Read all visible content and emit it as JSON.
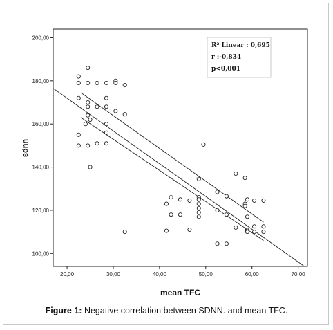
{
  "caption": {
    "label": "Figure 1:",
    "text": "Negative correlation between SDNN. and mean TFC."
  },
  "chart_data": {
    "type": "scatter",
    "xlabel": "mean TFC",
    "ylabel": "sdnn",
    "xlim": [
      17,
      72
    ],
    "ylim": [
      94,
      204
    ],
    "x_ticks": [
      20,
      30,
      40,
      50,
      60,
      70
    ],
    "x_tick_labels": [
      "20,00",
      "30,00",
      "40,00",
      "50,00",
      "60,00",
      "70,00"
    ],
    "y_ticks": [
      100,
      120,
      140,
      160,
      180,
      200
    ],
    "y_tick_labels": [
      "100,00",
      "120,00",
      "140,00",
      "160,00",
      "180,00",
      "200,00"
    ],
    "grid": false,
    "annotations": [
      "R² Linear : 0,695",
      "r :-0,834",
      "p<0,001"
    ],
    "fit_line": [
      [
        17,
        176.5
      ],
      [
        72,
        93
      ]
    ],
    "ci_upper": [
      [
        23,
        174.5
      ],
      [
        62.5,
        114.5
      ]
    ],
    "ci_lower": [
      [
        23,
        163
      ],
      [
        62.5,
        106
      ]
    ],
    "points": [
      [
        22.5,
        182
      ],
      [
        22.5,
        179
      ],
      [
        22.5,
        172
      ],
      [
        22.5,
        155
      ],
      [
        22.5,
        150
      ],
      [
        24,
        160
      ],
      [
        24.5,
        186
      ],
      [
        24.5,
        179
      ],
      [
        24.5,
        170
      ],
      [
        24.5,
        168
      ],
      [
        24.5,
        164
      ],
      [
        24.5,
        150
      ],
      [
        25,
        162
      ],
      [
        25,
        140
      ],
      [
        26.5,
        179
      ],
      [
        26.5,
        168
      ],
      [
        26.5,
        151
      ],
      [
        28.5,
        179
      ],
      [
        28.5,
        172
      ],
      [
        28.5,
        168
      ],
      [
        28.5,
        160
      ],
      [
        28.5,
        156
      ],
      [
        28.5,
        151
      ],
      [
        30.5,
        180
      ],
      [
        30.5,
        179
      ],
      [
        30.5,
        166
      ],
      [
        32.5,
        178
      ],
      [
        32.5,
        164.5
      ],
      [
        32.5,
        110
      ],
      [
        41.5,
        123
      ],
      [
        41.5,
        110.5
      ],
      [
        42.5,
        126
      ],
      [
        42.5,
        118
      ],
      [
        44.5,
        125
      ],
      [
        44.5,
        118
      ],
      [
        46.5,
        124.5
      ],
      [
        46.5,
        111
      ],
      [
        48.5,
        134.5
      ],
      [
        48.5,
        126
      ],
      [
        48.5,
        125
      ],
      [
        48.5,
        123
      ],
      [
        48.5,
        121
      ],
      [
        48.5,
        119
      ],
      [
        48.5,
        117
      ],
      [
        49.5,
        150.5
      ],
      [
        52.5,
        128.5
      ],
      [
        52.5,
        120
      ],
      [
        52.5,
        104.5
      ],
      [
        54.5,
        126.5
      ],
      [
        54.5,
        118
      ],
      [
        54.5,
        104.5
      ],
      [
        56.5,
        137
      ],
      [
        56.5,
        112
      ],
      [
        58.5,
        135
      ],
      [
        58.5,
        123
      ],
      [
        58.5,
        122
      ],
      [
        59,
        125
      ],
      [
        59,
        117
      ],
      [
        59,
        111
      ],
      [
        59,
        110.5
      ],
      [
        59,
        110
      ],
      [
        60.5,
        124.5
      ],
      [
        60.5,
        112.5
      ],
      [
        60.5,
        110
      ],
      [
        62.5,
        124.5
      ],
      [
        62.5,
        112.5
      ],
      [
        62.5,
        110
      ]
    ]
  }
}
